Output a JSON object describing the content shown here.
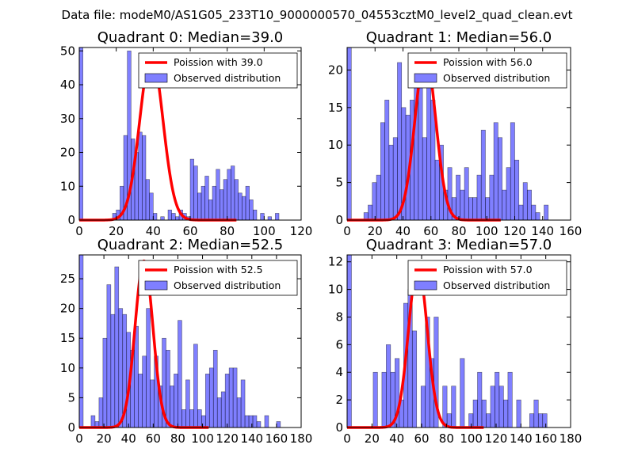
{
  "figure": {
    "suptitle": "Data file: modeM0/AS1G05_233T10_9000000570_04553cztM0_level2_quad_clean.evt"
  },
  "colors": {
    "bars": "#0000ff",
    "poisson": "#ff0000",
    "axes": "#000000",
    "background": "#ffffff"
  },
  "chart_data": [
    {
      "type": "bar",
      "title": "Quadrant 0: Median=39.0",
      "median": 39.0,
      "bin_width": 2.0,
      "xlim": [
        0,
        120
      ],
      "ylim": [
        0,
        51
      ],
      "xticks": [
        0,
        20,
        40,
        60,
        80,
        100,
        120
      ],
      "yticks": [
        0,
        10,
        20,
        30,
        40,
        50
      ],
      "legend": [
        "Poission with 39.0",
        "Observed distribution"
      ],
      "legend_loc": "upper right",
      "hist_x": [
        0,
        18,
        20,
        22,
        24,
        26,
        28,
        30,
        32,
        34,
        36,
        38,
        40,
        44,
        48,
        50,
        52,
        54,
        56,
        58,
        60,
        62,
        64,
        66,
        68,
        70,
        72,
        74,
        76,
        78,
        80,
        82,
        84,
        86,
        88,
        90,
        92,
        94,
        98,
        102,
        106
      ],
      "hist_y": [
        51,
        2,
        3,
        10,
        25,
        50,
        24,
        20,
        26,
        25,
        12,
        8,
        2,
        1,
        3,
        2,
        1,
        3,
        2,
        1,
        18,
        16,
        8,
        10,
        13,
        6,
        10,
        15,
        9,
        12,
        15,
        16,
        12,
        8,
        7,
        10,
        6,
        3,
        2,
        1,
        2
      ],
      "poisson_mean": 39.0,
      "poisson_peak": 49,
      "poisson_range": [
        0,
        85
      ]
    },
    {
      "type": "bar",
      "title": "Quadrant 1: Median=56.0",
      "median": 56.0,
      "bin_width": 3.0,
      "xlim": [
        0,
        160
      ],
      "ylim": [
        0,
        23
      ],
      "xticks": [
        0,
        20,
        40,
        60,
        80,
        100,
        120,
        140,
        160
      ],
      "yticks": [
        0,
        5,
        10,
        15,
        20
      ],
      "legend": [
        "Poission with 56.0",
        "Observed distribution"
      ],
      "legend_loc": "upper right",
      "hist_x": [
        0,
        12,
        15,
        18,
        21,
        24,
        27,
        30,
        33,
        36,
        39,
        42,
        45,
        48,
        51,
        54,
        57,
        60,
        63,
        66,
        69,
        72,
        75,
        78,
        81,
        84,
        87,
        90,
        93,
        96,
        99,
        102,
        105,
        108,
        111,
        114,
        117,
        120,
        123,
        126,
        129,
        132,
        135,
        141
      ],
      "hist_y": [
        23,
        1,
        2,
        5,
        6,
        13,
        16,
        10,
        11,
        21,
        15,
        14,
        16,
        22,
        19,
        11,
        18,
        16,
        8,
        10,
        4,
        7,
        3,
        6,
        4,
        7,
        3,
        3,
        6,
        12,
        3,
        6,
        13,
        11,
        4,
        7,
        13,
        8,
        2,
        5,
        4,
        2,
        1,
        2
      ],
      "poisson_mean": 56.0,
      "poisson_peak": 22,
      "poisson_range": [
        0,
        110
      ]
    },
    {
      "type": "bar",
      "title": "Quadrant 2: Median=52.5",
      "median": 52.5,
      "bin_width": 3.2,
      "xlim": [
        0,
        180
      ],
      "ylim": [
        0,
        29
      ],
      "xticks": [
        0,
        20,
        40,
        60,
        80,
        100,
        120,
        140,
        160,
        180
      ],
      "yticks": [
        0,
        5,
        10,
        15,
        20,
        25
      ],
      "legend": [
        "Poission with 52.5",
        "Observed distribution"
      ],
      "legend_loc": "upper right",
      "hist_x": [
        0,
        9.6,
        12.8,
        16,
        19.2,
        22.4,
        25.6,
        28.8,
        32,
        35.2,
        38.4,
        41.6,
        44.8,
        48,
        51.2,
        54.4,
        57.6,
        60.8,
        64,
        67.2,
        70.4,
        73.6,
        76.8,
        80,
        83.2,
        86.4,
        89.6,
        92.8,
        96,
        99.2,
        102.4,
        105.6,
        108.8,
        112,
        115.2,
        118.4,
        121.6,
        124.8,
        128,
        131.2,
        134.4,
        137.6,
        140.8,
        144,
        150.4,
        160
      ],
      "hist_y": [
        29,
        2,
        1,
        5,
        15,
        24,
        19,
        27,
        20,
        19,
        16,
        13,
        17,
        9,
        12,
        20,
        8,
        12,
        7,
        15,
        13,
        7,
        9,
        18,
        3,
        8,
        3,
        14,
        3,
        2,
        9,
        10,
        13,
        5,
        6,
        9,
        10,
        10,
        5,
        8,
        2,
        2,
        2,
        1,
        2,
        1
      ],
      "poisson_mean": 52.5,
      "poisson_peak": 28,
      "poisson_range": [
        0,
        105
      ]
    },
    {
      "type": "bar",
      "title": "Quadrant 3: Median=57.0",
      "median": 57.0,
      "bin_width": 3.5,
      "xlim": [
        0,
        180
      ],
      "ylim": [
        0,
        12.5
      ],
      "xticks": [
        0,
        20,
        40,
        60,
        80,
        100,
        120,
        140,
        160,
        180
      ],
      "yticks": [
        0,
        2,
        4,
        6,
        8,
        10,
        12
      ],
      "legend": [
        "Poission with 57.0",
        "Observed distribution"
      ],
      "legend_loc": "upper right",
      "hist_x": [
        0,
        21,
        28,
        31.5,
        35,
        38.5,
        42,
        45.5,
        49,
        52.5,
        59.5,
        63,
        66.5,
        70,
        77,
        80.5,
        84,
        91,
        98,
        101.5,
        105,
        108.5,
        112,
        115.5,
        119,
        122.5,
        126,
        129.5,
        136.5,
        147,
        150.5,
        154,
        157.5
      ],
      "hist_y": [
        12.5,
        4,
        4,
        6,
        4,
        5,
        2,
        9,
        10,
        7,
        3,
        8,
        5,
        8,
        3,
        1,
        3,
        5,
        1,
        2,
        4,
        2,
        1,
        3,
        4,
        3,
        2,
        4,
        2,
        1,
        2,
        1,
        1
      ],
      "poisson_mean": 57.0,
      "poisson_peak": 11.7,
      "poisson_range": [
        0,
        110
      ]
    }
  ]
}
